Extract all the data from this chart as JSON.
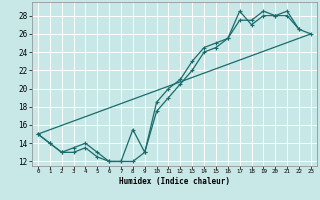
{
  "title": "",
  "xlabel": "Humidex (Indice chaleur)",
  "background_color": "#c8e8e8",
  "grid_color": "#ffffff",
  "line_color": "#1a6b6b",
  "xlim": [
    -0.5,
    23.5
  ],
  "ylim": [
    11.5,
    29.5
  ],
  "xticks": [
    0,
    1,
    2,
    3,
    4,
    5,
    6,
    7,
    8,
    9,
    10,
    11,
    12,
    13,
    14,
    15,
    16,
    17,
    18,
    19,
    20,
    21,
    22,
    23
  ],
  "yticks": [
    12,
    14,
    16,
    18,
    20,
    22,
    24,
    26,
    28
  ],
  "series1_x": [
    0,
    1,
    2,
    3,
    4,
    5,
    6,
    7,
    8,
    9,
    10,
    11,
    12,
    13,
    14,
    15,
    16,
    17,
    18,
    19,
    20,
    21,
    22
  ],
  "series1_y": [
    15.0,
    14.0,
    13.0,
    13.5,
    14.0,
    13.0,
    12.0,
    12.0,
    15.5,
    13.0,
    18.5,
    20.0,
    21.0,
    23.0,
    24.5,
    25.0,
    25.5,
    27.5,
    27.5,
    28.5,
    28.0,
    28.5,
    26.5
  ],
  "series2_x": [
    0,
    1,
    2,
    3,
    4,
    5,
    6,
    7,
    8,
    9,
    10,
    11,
    12,
    13,
    14,
    15,
    16,
    17,
    18,
    19,
    20,
    21,
    22,
    23
  ],
  "series2_y": [
    15.0,
    14.0,
    13.0,
    13.0,
    13.5,
    12.5,
    12.0,
    12.0,
    12.0,
    13.0,
    17.5,
    19.0,
    20.5,
    22.0,
    24.0,
    24.5,
    25.5,
    28.5,
    27.0,
    28.0,
    28.0,
    28.0,
    26.5,
    26.0
  ],
  "series3_x": [
    0,
    23
  ],
  "series3_y": [
    15.0,
    26.0
  ]
}
